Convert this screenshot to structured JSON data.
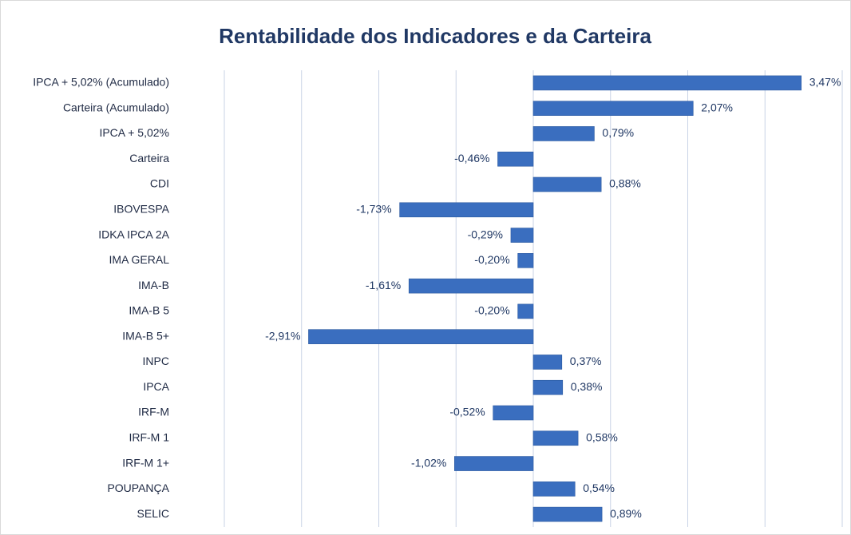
{
  "chart_data": {
    "type": "barh",
    "title": "Rentabilidade dos Indicadores e da Carteira",
    "categories": [
      "IPCA + 5,02% (Acumulado)",
      "Carteira (Acumulado)",
      "IPCA + 5,02%",
      "Carteira",
      "CDI",
      "IBOVESPA",
      "IDKA IPCA 2A",
      "IMA GERAL",
      "IMA-B",
      "IMA-B 5",
      "IMA-B 5+",
      "INPC",
      "IPCA",
      "IRF-M",
      "IRF-M 1",
      "IRF-M 1+",
      "POUPANÇA",
      "SELIC"
    ],
    "values": [
      3.47,
      2.07,
      0.79,
      -0.46,
      0.88,
      -1.73,
      -0.29,
      -0.2,
      -1.61,
      -0.2,
      -2.91,
      0.37,
      0.38,
      -0.52,
      0.58,
      -1.02,
      0.54,
      0.89
    ],
    "value_labels": [
      "3,47%",
      "2,07%",
      "0,79%",
      "-0,46%",
      "0,88%",
      "-1,73%",
      "-0,29%",
      "-0,20%",
      "-1,61%",
      "-0,20%",
      "-2,91%",
      "0,37%",
      "0,38%",
      "-0,52%",
      "0,58%",
      "-1,02%",
      "0,54%",
      "0,89%"
    ],
    "color": "#3a6ebf",
    "xlim": [
      -4,
      4
    ],
    "xticks": [
      -4,
      -3,
      -2,
      -1,
      0,
      1,
      2,
      3,
      4
    ],
    "grid": true
  }
}
